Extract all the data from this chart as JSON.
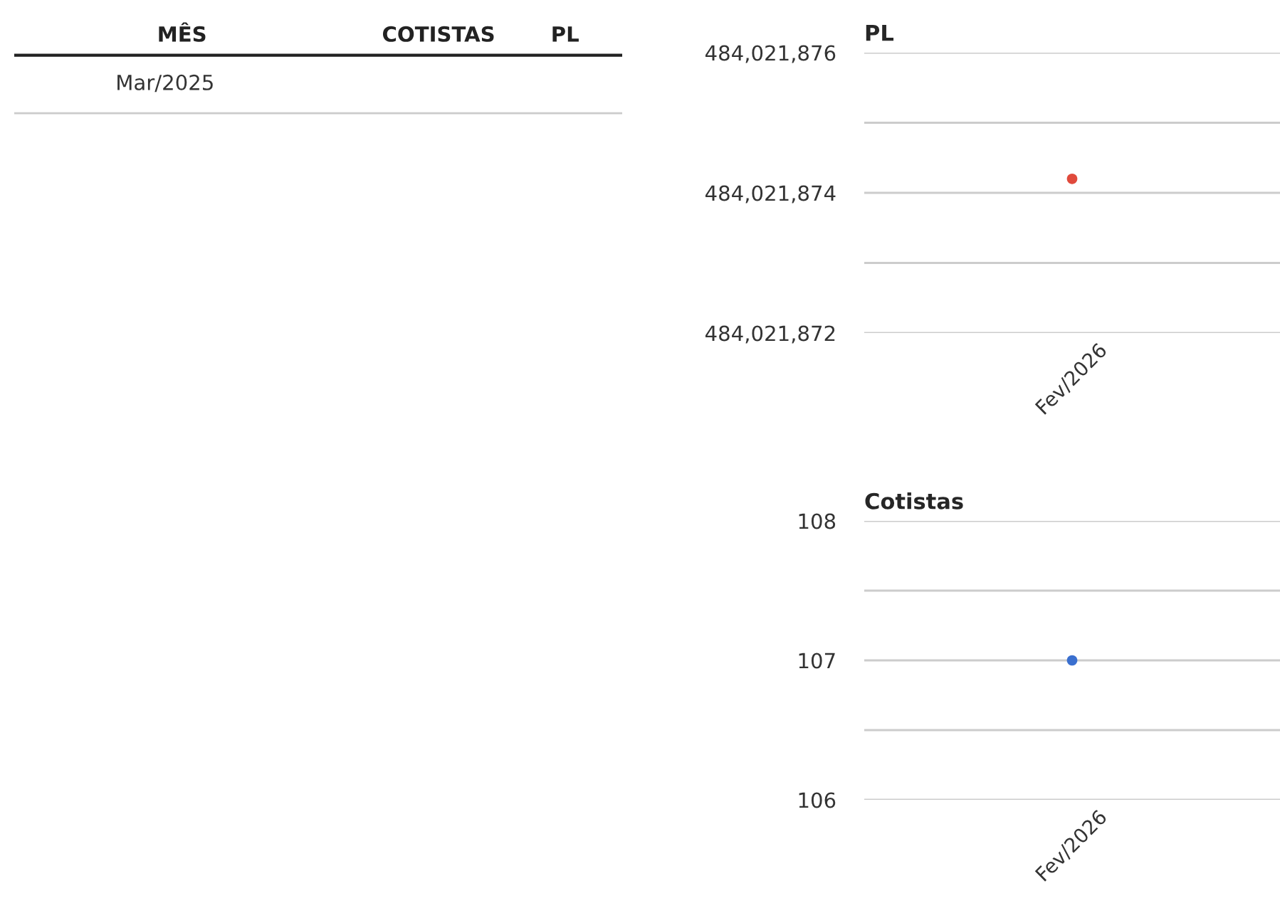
{
  "chart_data": [
    {
      "type": "other",
      "categories": [
        "MÊS",
        "COTISTAS",
        "PL"
      ],
      "y_categories": [
        "Mar/2025"
      ]
    },
    {
      "type": "scatter",
      "title": "PL",
      "categories": [
        "Fev/2026"
      ],
      "series": [
        {
          "color": "#e04a3c",
          "values": [
            484021874.2
          ]
        }
      ],
      "ylim": [
        484021872,
        484021876
      ],
      "yticks": [
        {
          "value": 484021872,
          "label": "484,021,872"
        },
        {
          "value": 484021873,
          "label": null
        },
        {
          "value": 484021874,
          "label": "484,021,874"
        },
        {
          "value": 484021875,
          "label": null
        },
        {
          "value": 484021876,
          "label": "484,021,876"
        }
      ],
      "grid": "y",
      "marker": "circle"
    },
    {
      "type": "scatter",
      "title": "Cotistas",
      "categories": [
        "Fev/2026"
      ],
      "series": [
        {
          "color": "#3a6fcf",
          "values": [
            107
          ]
        }
      ],
      "ylim": [
        106,
        108
      ],
      "yticks": [
        106,
        {
          "value": 106.5,
          "label": null
        },
        107,
        {
          "value": 107.5,
          "label": null
        },
        108
      ],
      "grid": "y",
      "marker": "circle"
    }
  ]
}
